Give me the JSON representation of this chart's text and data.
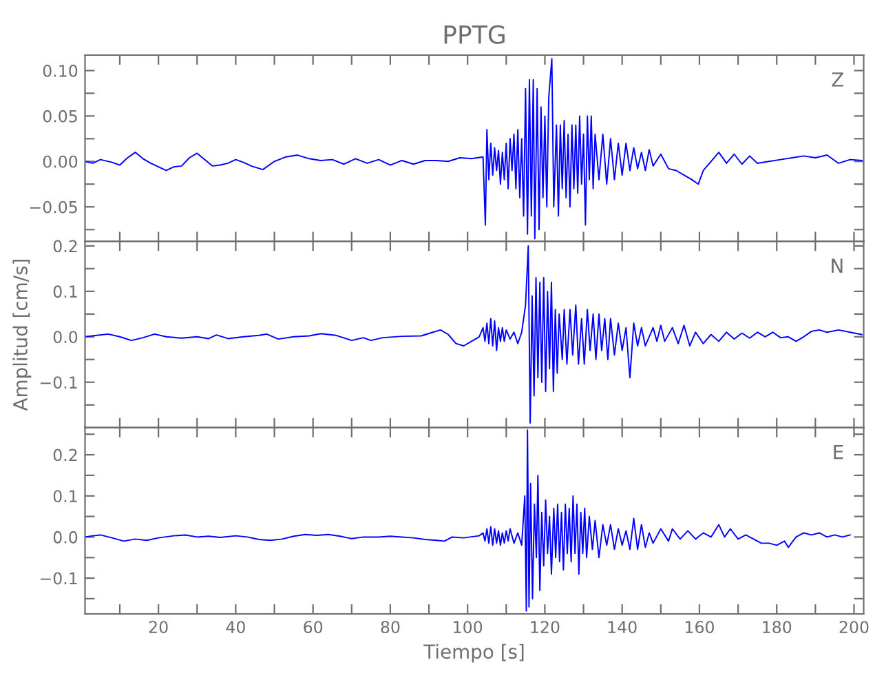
{
  "chart_data": [
    {
      "type": "line",
      "title": "PPTG",
      "annotations": [
        "Z"
      ],
      "tick_labels": "y",
      "grid": false,
      "xlim": [
        1,
        202.5
      ],
      "ylim": [
        -0.088,
        0.117
      ],
      "xticks": [
        {
          "value": 10,
          "label": null
        },
        {
          "value": 20,
          "label": null
        },
        {
          "value": 30,
          "label": null
        },
        {
          "value": 40,
          "label": null
        },
        {
          "value": 50,
          "label": null
        },
        {
          "value": 60,
          "label": null
        },
        {
          "value": 70,
          "label": null
        },
        {
          "value": 80,
          "label": null
        },
        {
          "value": 90,
          "label": null
        },
        {
          "value": 100,
          "label": null
        },
        {
          "value": 110,
          "label": null
        },
        {
          "value": 120,
          "label": null
        },
        {
          "value": 130,
          "label": null
        },
        {
          "value": 140,
          "label": null
        },
        {
          "value": 150,
          "label": null
        },
        {
          "value": 160,
          "label": null
        },
        {
          "value": 170,
          "label": null
        },
        {
          "value": 180,
          "label": null
        },
        {
          "value": 190,
          "label": null
        },
        {
          "value": 200,
          "label": null
        }
      ],
      "yticks": [
        {
          "value": -0.075,
          "label": null
        },
        {
          "value": -0.05,
          "label": "−0.05"
        },
        {
          "value": -0.025,
          "label": null
        },
        {
          "value": 0,
          "label": "0.00"
        },
        {
          "value": 0.025,
          "label": null
        },
        {
          "value": 0.05,
          "label": "0.05"
        },
        {
          "value": 0.075,
          "label": null
        },
        {
          "value": 0.1,
          "label": "0.10"
        }
      ],
      "series": [
        {
          "color": "#0000ff",
          "x": [
            1,
            3,
            5,
            8,
            10,
            12,
            14,
            16,
            18,
            20,
            22,
            24,
            26,
            28,
            30,
            32,
            34,
            36,
            38,
            40,
            42,
            44,
            47,
            50,
            53,
            56,
            59,
            62,
            65,
            68,
            71,
            74,
            77,
            80,
            83,
            86,
            89,
            92,
            95,
            98,
            101,
            104,
            104.6,
            105,
            105.5,
            106,
            106.5,
            107,
            107.5,
            108,
            108.5,
            109,
            109.5,
            110,
            110.5,
            111,
            111.5,
            112,
            112.5,
            113,
            113.5,
            114,
            114.5,
            115,
            115.5,
            116,
            116.5,
            117,
            117.4,
            118,
            118.5,
            119,
            119.5,
            120,
            120.5,
            121,
            121.8,
            122.3,
            123,
            123.5,
            124,
            124.5,
            125,
            125.5,
            126,
            126.5,
            127,
            127.5,
            128,
            128.5,
            129,
            129.5,
            130,
            130.5,
            131,
            131.5,
            132,
            132.5,
            133,
            134,
            135,
            136,
            137,
            138,
            139,
            140,
            141,
            142,
            143,
            144,
            145,
            146,
            147,
            148,
            150,
            152,
            154,
            156,
            158,
            159.7,
            161,
            163,
            165,
            167,
            169,
            171,
            173,
            175,
            178,
            181,
            184,
            187,
            190,
            193,
            196,
            199,
            202
          ],
          "values": [
            0.0,
            -0.002,
            0.002,
            -0.001,
            -0.004,
            0.004,
            0.01,
            0.003,
            -0.002,
            -0.006,
            -0.01,
            -0.006,
            -0.005,
            0.004,
            0.009,
            0.002,
            -0.005,
            -0.004,
            -0.002,
            0.002,
            -0.001,
            -0.005,
            -0.009,
            0.0,
            0.005,
            0.007,
            0.003,
            0.001,
            0.002,
            -0.003,
            0.003,
            -0.002,
            0.002,
            -0.004,
            0.001,
            -0.003,
            0.001,
            0.001,
            0.0,
            0.004,
            0.003,
            0.005,
            -0.07,
            0.035,
            -0.02,
            0.02,
            -0.015,
            0.015,
            -0.01,
            0.012,
            -0.025,
            0.01,
            -0.02,
            0.02,
            -0.03,
            0.025,
            -0.01,
            0.03,
            -0.03,
            0.035,
            -0.04,
            0.025,
            -0.06,
            0.08,
            -0.08,
            0.09,
            -0.06,
            0.09,
            -0.085,
            0.08,
            -0.075,
            0.06,
            -0.04,
            0.05,
            -0.05,
            0.07,
            0.113,
            -0.05,
            0.04,
            -0.06,
            0.04,
            -0.03,
            0.045,
            -0.04,
            0.03,
            -0.05,
            0.04,
            -0.03,
            0.04,
            -0.035,
            0.05,
            -0.025,
            0.03,
            -0.07,
            0.05,
            -0.02,
            0.05,
            -0.03,
            0.03,
            -0.02,
            0.03,
            -0.025,
            0.025,
            -0.02,
            0.02,
            -0.015,
            0.02,
            -0.01,
            0.015,
            -0.008,
            0.01,
            -0.01,
            0.013,
            -0.005,
            0.008,
            -0.008,
            -0.01,
            -0.015,
            -0.02,
            -0.025,
            -0.01,
            0.0,
            0.01,
            -0.002,
            0.008,
            -0.003,
            0.006,
            -0.002,
            0.0,
            0.002,
            0.004,
            0.006,
            0.004,
            0.007,
            -0.002,
            0.002,
            0.001
          ]
        }
      ]
    },
    {
      "type": "line",
      "ylabel": "Amplitud [cm/s]",
      "annotations": [
        "N"
      ],
      "tick_labels": "y",
      "grid": false,
      "xlim": [
        1,
        202.5
      ],
      "ylim": [
        -0.2,
        0.21
      ],
      "xticks": [
        {
          "value": 10,
          "label": null
        },
        {
          "value": 20,
          "label": null
        },
        {
          "value": 30,
          "label": null
        },
        {
          "value": 40,
          "label": null
        },
        {
          "value": 50,
          "label": null
        },
        {
          "value": 60,
          "label": null
        },
        {
          "value": 70,
          "label": null
        },
        {
          "value": 80,
          "label": null
        },
        {
          "value": 90,
          "label": null
        },
        {
          "value": 100,
          "label": null
        },
        {
          "value": 110,
          "label": null
        },
        {
          "value": 120,
          "label": null
        },
        {
          "value": 130,
          "label": null
        },
        {
          "value": 140,
          "label": null
        },
        {
          "value": 150,
          "label": null
        },
        {
          "value": 160,
          "label": null
        },
        {
          "value": 170,
          "label": null
        },
        {
          "value": 180,
          "label": null
        },
        {
          "value": 190,
          "label": null
        },
        {
          "value": 200,
          "label": null
        }
      ],
      "yticks": [
        {
          "value": -0.15,
          "label": null
        },
        {
          "value": -0.1,
          "label": "−0.1"
        },
        {
          "value": -0.05,
          "label": null
        },
        {
          "value": 0,
          "label": "0.0"
        },
        {
          "value": 0.05,
          "label": null
        },
        {
          "value": 0.1,
          "label": "0.1"
        },
        {
          "value": 0.15,
          "label": null
        },
        {
          "value": 0.2,
          "label": "0.2"
        }
      ],
      "series": [
        {
          "color": "#0000ff",
          "x": [
            1,
            4,
            7,
            10,
            13,
            16,
            19,
            22,
            26,
            30,
            33,
            35,
            38,
            42,
            46,
            48,
            51,
            55,
            59,
            62,
            66,
            70,
            73,
            75,
            78,
            83,
            88,
            91,
            93,
            95,
            97,
            99,
            101,
            103,
            104,
            104.5,
            105,
            105.5,
            106,
            106.5,
            107,
            107.5,
            108,
            108.5,
            109,
            109.5,
            110,
            111,
            112,
            113,
            114,
            115,
            115.7,
            116.2,
            116.7,
            117.2,
            117.7,
            118.2,
            118.7,
            119.2,
            119.7,
            120.2,
            120.7,
            121.2,
            121.7,
            122.2,
            122.7,
            123.2,
            123.7,
            124.5,
            125,
            125.7,
            126.5,
            127.2,
            128,
            128.7,
            129.5,
            130.2,
            131,
            131.7,
            132.5,
            133.2,
            134,
            134.7,
            135.5,
            136.3,
            137,
            138,
            139,
            140,
            141,
            142,
            143,
            144,
            145,
            146,
            148,
            149,
            150,
            151,
            153,
            154.5,
            156,
            157.5,
            159,
            161,
            163,
            165,
            167,
            169,
            171,
            173,
            175,
            177,
            179,
            181,
            183,
            185,
            187,
            189,
            191,
            193,
            196,
            199,
            202
          ],
          "values": [
            0.0,
            0.003,
            0.006,
            0.0,
            -0.008,
            -0.002,
            0.006,
            0.0,
            -0.003,
            0.0,
            -0.004,
            0.004,
            -0.004,
            0.0,
            0.003,
            0.006,
            -0.005,
            0.0,
            0.002,
            0.007,
            0.003,
            -0.008,
            -0.002,
            -0.008,
            -0.002,
            0.001,
            0.002,
            0.01,
            0.015,
            0.005,
            -0.015,
            -0.02,
            -0.01,
            0.0,
            0.02,
            -0.01,
            0.03,
            -0.015,
            0.04,
            -0.02,
            0.035,
            -0.03,
            0.02,
            -0.01,
            0.02,
            -0.01,
            0.015,
            -0.005,
            0.01,
            -0.015,
            0.01,
            0.07,
            0.2,
            -0.19,
            0.09,
            -0.13,
            0.13,
            -0.09,
            0.12,
            -0.1,
            0.13,
            -0.12,
            0.1,
            -0.07,
            0.12,
            -0.12,
            0.06,
            -0.08,
            0.05,
            -0.05,
            0.06,
            -0.06,
            0.06,
            -0.04,
            0.07,
            -0.06,
            0.04,
            -0.06,
            0.06,
            -0.03,
            0.05,
            -0.05,
            0.05,
            -0.03,
            0.04,
            -0.05,
            0.04,
            -0.04,
            0.03,
            -0.03,
            0.02,
            -0.09,
            0.03,
            -0.02,
            0.02,
            -0.02,
            0.02,
            -0.01,
            0.025,
            -0.01,
            0.02,
            -0.015,
            0.025,
            -0.02,
            0.01,
            -0.015,
            0.005,
            -0.01,
            0.01,
            -0.005,
            0.008,
            -0.003,
            0.01,
            0.0,
            0.01,
            -0.002,
            0.0,
            -0.01,
            0.0,
            0.012,
            0.015,
            0.01,
            0.015,
            0.01,
            0.005
          ]
        }
      ]
    },
    {
      "type": "line",
      "xlabel": "Tiempo [s]",
      "annotations": [
        "E"
      ],
      "grid": false,
      "xlim": [
        1,
        202.5
      ],
      "ylim": [
        -0.187,
        0.266
      ],
      "xticks": [
        {
          "value": 10,
          "label": null
        },
        20,
        {
          "value": 30,
          "label": null
        },
        40,
        {
          "value": 50,
          "label": null
        },
        60,
        {
          "value": 70,
          "label": null
        },
        80,
        {
          "value": 90,
          "label": null
        },
        100,
        {
          "value": 110,
          "label": null
        },
        120,
        {
          "value": 130,
          "label": null
        },
        140,
        {
          "value": 150,
          "label": null
        },
        160,
        {
          "value": 170,
          "label": null
        },
        180,
        {
          "value": 190,
          "label": null
        },
        200
      ],
      "yticks": [
        {
          "value": -0.15,
          "label": null
        },
        {
          "value": -0.1,
          "label": "−0.1"
        },
        {
          "value": -0.05,
          "label": null
        },
        {
          "value": 0,
          "label": "0.0"
        },
        {
          "value": 0.05,
          "label": null
        },
        {
          "value": 0.1,
          "label": "0.1"
        },
        {
          "value": 0.15,
          "label": null
        },
        {
          "value": 0.2,
          "label": "0.2"
        },
        {
          "value": 0.25,
          "label": null
        }
      ],
      "series": [
        {
          "color": "#0000ff",
          "x": [
            1,
            3,
            5,
            8,
            11,
            14,
            17,
            20,
            24,
            27,
            30,
            33,
            36,
            40,
            43,
            46,
            49,
            52,
            55,
            58,
            61,
            64,
            67,
            70,
            73,
            77,
            80,
            83,
            86,
            89,
            92,
            94,
            96,
            99,
            103,
            104,
            104.5,
            105,
            105.5,
            106,
            106.5,
            107,
            107.5,
            108,
            108.5,
            109,
            109.5,
            110,
            110.5,
            111,
            112,
            113,
            114,
            114.8,
            115.2,
            115.5,
            115.9,
            116.3,
            116.8,
            117.3,
            117.8,
            118.2,
            118.7,
            119.2,
            119.7,
            120.2,
            120.7,
            121.2,
            121.7,
            122.3,
            122.8,
            123.3,
            123.8,
            124.3,
            124.8,
            125.3,
            125.8,
            126.3,
            126.8,
            127.3,
            127.8,
            128.3,
            128.8,
            129.3,
            129.8,
            130.3,
            130.8,
            131.5,
            132.3,
            133,
            134,
            135,
            136,
            137,
            138,
            139,
            140,
            141,
            142,
            143,
            144,
            145,
            146,
            147,
            148,
            150,
            152,
            153,
            155,
            157,
            159,
            161,
            163,
            165,
            166.5,
            168,
            170,
            172,
            174,
            176,
            178,
            180,
            182,
            183,
            185,
            187,
            189,
            191,
            193,
            195,
            197,
            199
          ],
          "values": [
            0.0,
            0.003,
            0.005,
            -0.002,
            -0.01,
            -0.005,
            -0.008,
            -0.002,
            0.003,
            0.005,
            0.0,
            0.002,
            -0.001,
            0.003,
            0.0,
            -0.006,
            -0.008,
            -0.005,
            0.002,
            0.006,
            0.004,
            0.006,
            0.002,
            -0.004,
            0.0,
            0.0,
            0.002,
            0.0,
            -0.002,
            -0.006,
            -0.008,
            -0.01,
            0.0,
            -0.002,
            0.003,
            0.01,
            -0.01,
            0.02,
            -0.015,
            0.025,
            -0.02,
            0.02,
            -0.015,
            0.015,
            -0.02,
            0.01,
            -0.015,
            0.015,
            -0.01,
            0.02,
            -0.015,
            0.01,
            -0.02,
            0.1,
            -0.18,
            0.26,
            -0.17,
            0.13,
            -0.15,
            0.08,
            -0.05,
            0.15,
            -0.13,
            0.06,
            -0.07,
            0.09,
            -0.04,
            0.05,
            -0.09,
            0.07,
            -0.05,
            0.08,
            -0.06,
            0.06,
            -0.08,
            0.08,
            -0.04,
            0.07,
            -0.06,
            0.1,
            -0.04,
            0.08,
            -0.09,
            0.06,
            -0.04,
            0.07,
            -0.05,
            0.05,
            -0.03,
            0.04,
            -0.05,
            0.03,
            -0.02,
            0.03,
            -0.03,
            0.02,
            -0.02,
            0.015,
            -0.03,
            0.045,
            -0.03,
            0.03,
            -0.025,
            0.01,
            -0.015,
            0.02,
            -0.01,
            0.02,
            -0.005,
            0.015,
            -0.005,
            0.01,
            0.0,
            0.03,
            0.0,
            0.02,
            -0.005,
            0.005,
            -0.005,
            -0.015,
            -0.015,
            -0.02,
            -0.01,
            -0.025,
            0.0,
            0.01,
            0.005,
            0.01,
            0.0,
            0.005,
            0.0,
            0.005
          ]
        }
      ]
    }
  ]
}
